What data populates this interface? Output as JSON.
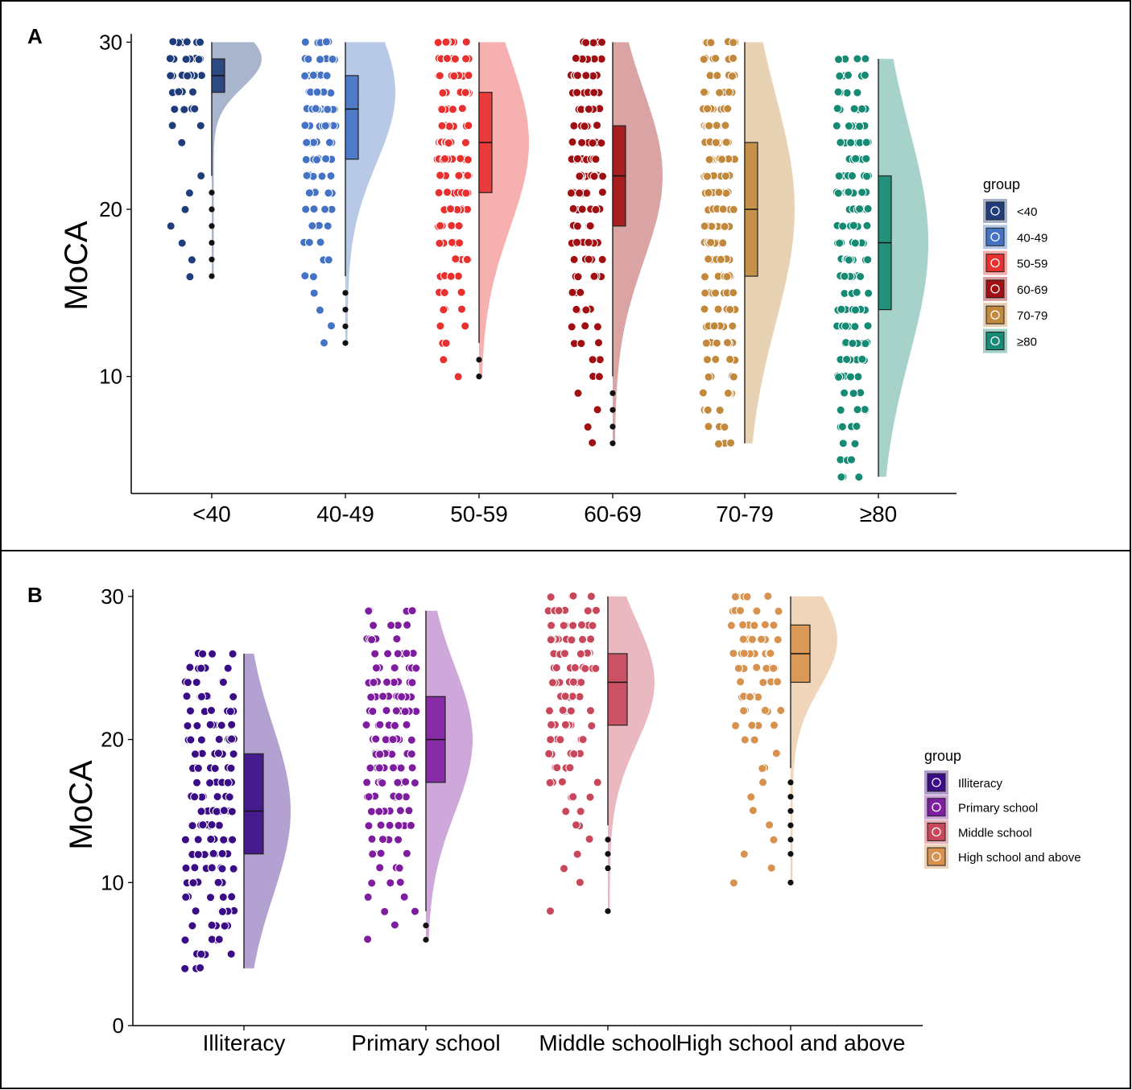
{
  "chart_data": [
    {
      "panel": "A",
      "type": "raincloud",
      "ylabel": "MoCA",
      "xlabel": "",
      "ylim": [
        3,
        30.5
      ],
      "yticks": [
        10,
        20,
        30
      ],
      "legend_title": "group",
      "legend_position": "right",
      "categories": [
        "<40",
        "40-49",
        "50-59",
        "60-69",
        "70-79",
        "≥80"
      ],
      "groups": [
        {
          "name": "<40",
          "color": "#1F3D7A",
          "median": 28,
          "q1": 27,
          "q3": 29,
          "whisker_low": 22,
          "whisker_high": 30,
          "min": 16,
          "max": 30,
          "outliers": [
            21,
            20,
            19,
            18,
            17,
            16
          ]
        },
        {
          "name": "40-49",
          "color": "#4472C4",
          "median": 26,
          "q1": 23,
          "q3": 28,
          "whisker_low": 16,
          "whisker_high": 30,
          "min": 12,
          "max": 30,
          "outliers": [
            15,
            14,
            13,
            12
          ]
        },
        {
          "name": "50-59",
          "color": "#E8302E",
          "median": 24,
          "q1": 21,
          "q3": 27,
          "whisker_low": 12,
          "whisker_high": 30,
          "min": 10,
          "max": 30,
          "outliers": [
            11,
            10
          ]
        },
        {
          "name": "60-69",
          "color": "#A00F12",
          "median": 22,
          "q1": 19,
          "q3": 25,
          "whisker_low": 10,
          "whisker_high": 30,
          "min": 6,
          "max": 30,
          "outliers": [
            9,
            8,
            7,
            6
          ]
        },
        {
          "name": "70-79",
          "color": "#C2893C",
          "median": 20,
          "q1": 16,
          "q3": 24,
          "whisker_low": 6,
          "whisker_high": 30,
          "min": 6,
          "max": 30,
          "outliers": []
        },
        {
          "name": "≥80",
          "color": "#168A74",
          "median": 18,
          "q1": 14,
          "q3": 22,
          "whisker_low": 4,
          "whisker_high": 29,
          "min": 4,
          "max": 29,
          "outliers": []
        }
      ]
    },
    {
      "panel": "B",
      "type": "raincloud",
      "ylabel": "MoCA",
      "xlabel": "",
      "ylim": [
        0,
        30.5
      ],
      "yticks": [
        0,
        10,
        20,
        30
      ],
      "legend_title": "group",
      "legend_position": "right",
      "categories": [
        "Illiteracy",
        "Primary school",
        "Middle school",
        "High school and above"
      ],
      "groups": [
        {
          "name": "Illiteracy",
          "color": "#3A0C86",
          "median": 15,
          "q1": 12,
          "q3": 19,
          "whisker_low": 4,
          "whisker_high": 26,
          "min": 4,
          "max": 26,
          "outliers": []
        },
        {
          "name": "Primary school",
          "color": "#7F1DA0",
          "median": 20,
          "q1": 17,
          "q3": 23,
          "whisker_low": 8,
          "whisker_high": 29,
          "min": 6,
          "max": 29,
          "outliers": [
            7,
            6
          ]
        },
        {
          "name": "Middle school",
          "color": "#C8475A",
          "median": 24,
          "q1": 21,
          "q3": 26,
          "whisker_low": 14,
          "whisker_high": 30,
          "min": 8,
          "max": 30,
          "outliers": [
            13,
            12,
            11,
            8
          ]
        },
        {
          "name": "High school and above",
          "color": "#D8924D",
          "median": 26,
          "q1": 24,
          "q3": 28,
          "whisker_low": 18,
          "whisker_high": 30,
          "min": 10,
          "max": 30,
          "outliers": [
            17,
            16,
            15,
            14,
            13,
            12,
            10
          ]
        }
      ]
    }
  ]
}
